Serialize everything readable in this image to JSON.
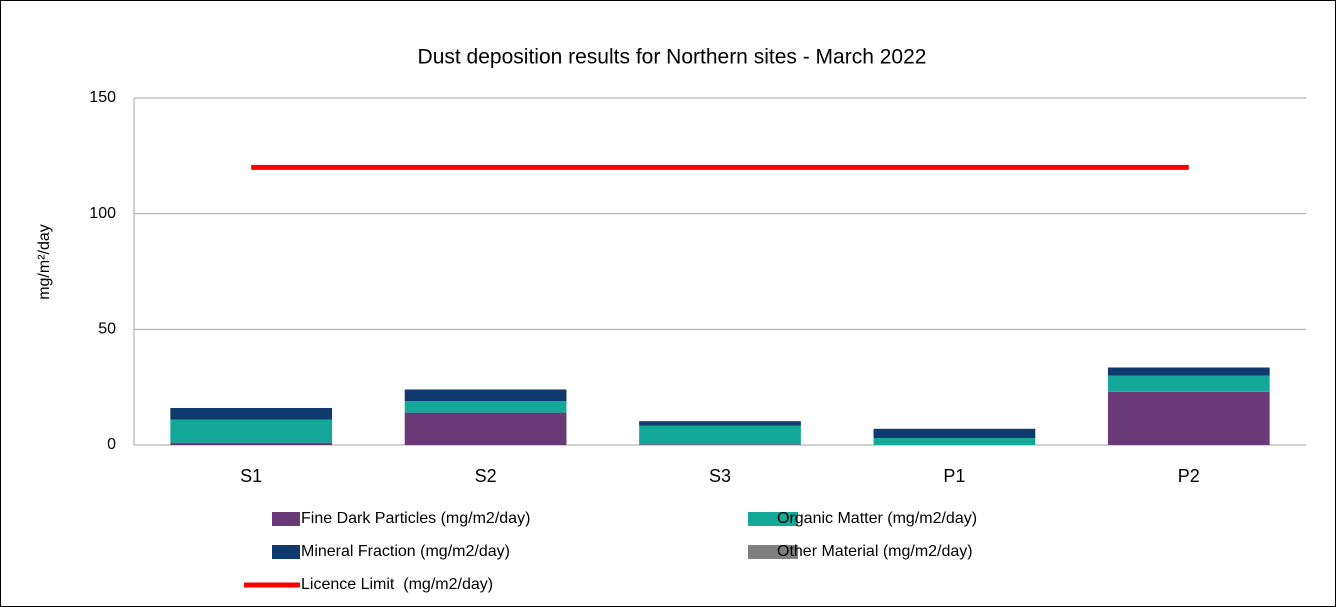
{
  "chart_data": {
    "type": "bar",
    "stacked": true,
    "title": "Dust deposition results for Northern sites - March 2022",
    "y_label": "mg/m²/day",
    "categories": [
      "S1",
      "S2",
      "S3",
      "P1",
      "P2"
    ],
    "series": [
      {
        "name": "Fine Dark Particles (mg/m2/day)",
        "color": "#6a3a78",
        "type": "bar",
        "values": [
          1,
          14,
          0.3,
          0,
          23
        ]
      },
      {
        "name": "Organic Matter (mg/m2/day)",
        "color": "#14a899",
        "type": "bar",
        "values": [
          10,
          5,
          8,
          3,
          7
        ]
      },
      {
        "name": "Mineral Fraction (mg/m2/day)",
        "color": "#0e3a6e",
        "type": "bar",
        "values": [
          5,
          5,
          2,
          4,
          3.5
        ]
      },
      {
        "name": "Other Material (mg/m2/day)",
        "color": "#808080",
        "type": "bar",
        "values": [
          0,
          0,
          0,
          0,
          0
        ]
      },
      {
        "name": "Licence Limit  (mg/m2/day)",
        "color": "#ff0000",
        "type": "line",
        "values": [
          120,
          120,
          120,
          120,
          120
        ]
      }
    ],
    "ylim": [
      0,
      150
    ],
    "yticks": [
      0,
      50,
      100,
      150
    ],
    "grid": true
  }
}
